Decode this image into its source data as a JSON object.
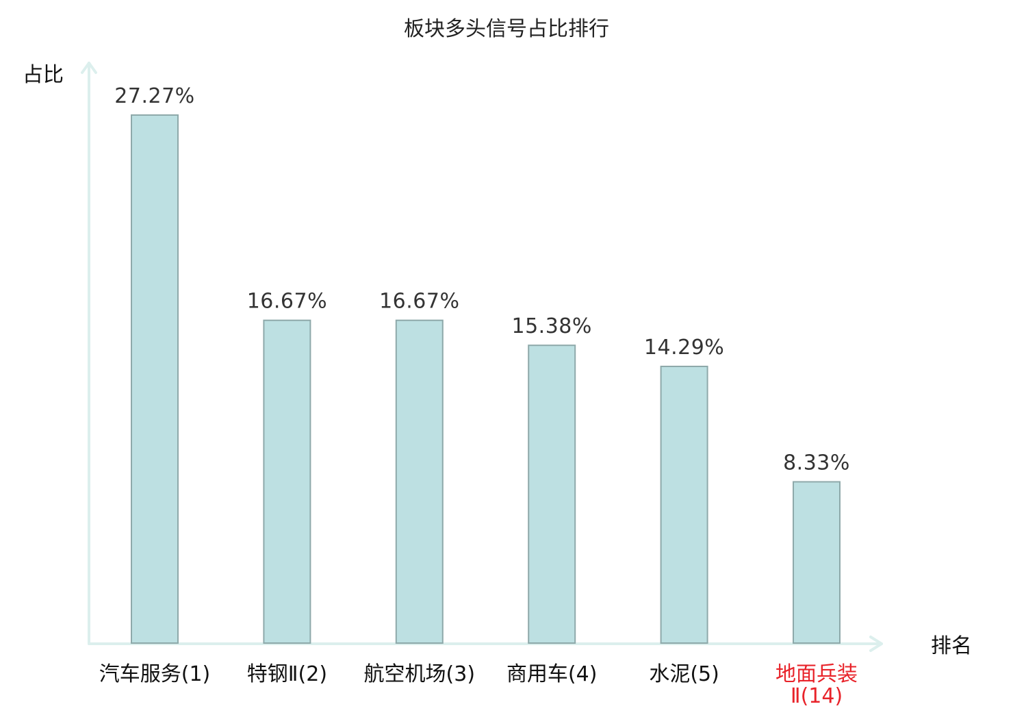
{
  "chart_data": {
    "type": "bar",
    "title": "板块多头信号占比排行",
    "ylabel": "占比",
    "xlabel": "排名",
    "categories": [
      [
        "汽车服务(1)"
      ],
      [
        "特钢Ⅱ(2)"
      ],
      [
        "航空机场(3)"
      ],
      [
        "商用车(4)"
      ],
      [
        "水泥(5)"
      ],
      [
        "地面兵装",
        "Ⅱ(14)"
      ]
    ],
    "values": [
      27.27,
      16.67,
      16.67,
      15.38,
      14.29,
      8.33
    ],
    "value_labels": [
      "27.27%",
      "16.67%",
      "16.67%",
      "15.38%",
      "14.29%",
      "8.33%"
    ],
    "highlight_index": 5,
    "ylim": [
      0,
      27.27
    ],
    "grid": false,
    "colors": {
      "bar_fill": "#bde0e2",
      "bar_stroke": "#8ea9aa",
      "axis": "#dcefed",
      "label_default": "#111111",
      "label_highlight": "#e8232a",
      "value_text": "#333333"
    }
  }
}
